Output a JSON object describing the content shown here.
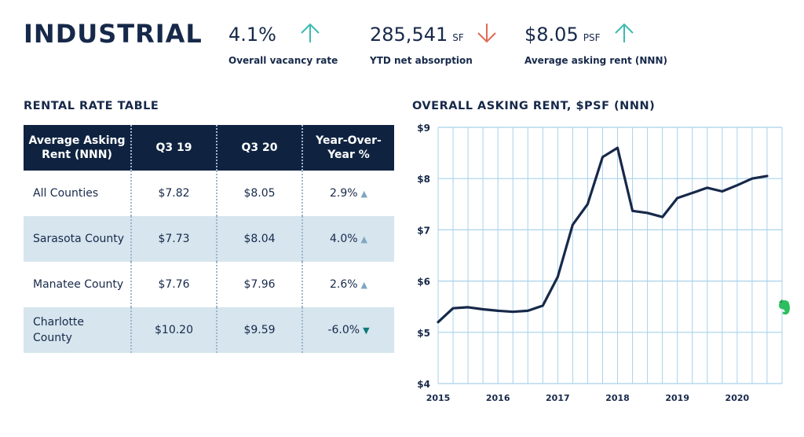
{
  "header": {
    "title": "INDUSTRIAL",
    "stats": [
      {
        "value": "4.1%",
        "unit": "",
        "label": "Overall vacancy rate",
        "trend": "up",
        "arrow_color": "#3bbbb0"
      },
      {
        "value": "285,541",
        "unit": "SF",
        "label": "YTD net absorption",
        "trend": "down",
        "arrow_color": "#e06a55"
      },
      {
        "value": "$8.05",
        "unit": "PSF",
        "label": "Average asking rent (NNN)",
        "trend": "up",
        "arrow_color": "#3bbbb0"
      }
    ]
  },
  "table": {
    "title": "RENTAL RATE TABLE",
    "headers": [
      "Average Asking Rent (NNN)",
      "Q3 19",
      "Q3 20",
      "Year-Over-Year %"
    ],
    "rows": [
      {
        "name": "All Counties",
        "q319": "$7.82",
        "q320": "$8.05",
        "yoy": "2.9%",
        "trend": "up"
      },
      {
        "name": "Sarasota County",
        "q319": "$7.73",
        "q320": "$8.04",
        "yoy": "4.0%",
        "trend": "up"
      },
      {
        "name": "Manatee County",
        "q319": "$7.76",
        "q320": "$7.96",
        "yoy": "2.6%",
        "trend": "up"
      },
      {
        "name": "Charlotte County",
        "q319": "$10.20",
        "q320": "$9.59",
        "yoy": "-6.0%",
        "trend": "down"
      }
    ]
  },
  "chart_data": {
    "type": "line",
    "title": "OVERALL ASKING RENT, $PSF (NNN)",
    "xlabel": "",
    "ylabel": "",
    "x_ticks": [
      "2015",
      "2016",
      "2017",
      "2018",
      "2019",
      "2020"
    ],
    "y_ticks": [
      "$4",
      "$5",
      "$6",
      "$7",
      "$8",
      "$9"
    ],
    "xlim": [
      2015,
      2020.75
    ],
    "ylim": [
      4,
      9
    ],
    "grid": true,
    "line_color": "#17294a",
    "grid_color": "#a8d2ea",
    "series": [
      {
        "name": "",
        "x": [
          2015.0,
          2015.25,
          2015.5,
          2015.75,
          2016.0,
          2016.25,
          2016.5,
          2016.75,
          2017.0,
          2017.25,
          2017.5,
          2017.75,
          2018.0,
          2018.25,
          2018.5,
          2018.75,
          2019.0,
          2019.25,
          2019.5,
          2019.75,
          2020.0,
          2020.25,
          2020.5
        ],
        "y": [
          5.2,
          5.47,
          5.49,
          5.45,
          5.42,
          5.4,
          5.42,
          5.52,
          6.08,
          7.1,
          7.5,
          8.42,
          8.6,
          7.37,
          7.33,
          7.25,
          7.62,
          7.72,
          7.82,
          7.75,
          7.87,
          8.0,
          8.05
        ]
      }
    ]
  }
}
